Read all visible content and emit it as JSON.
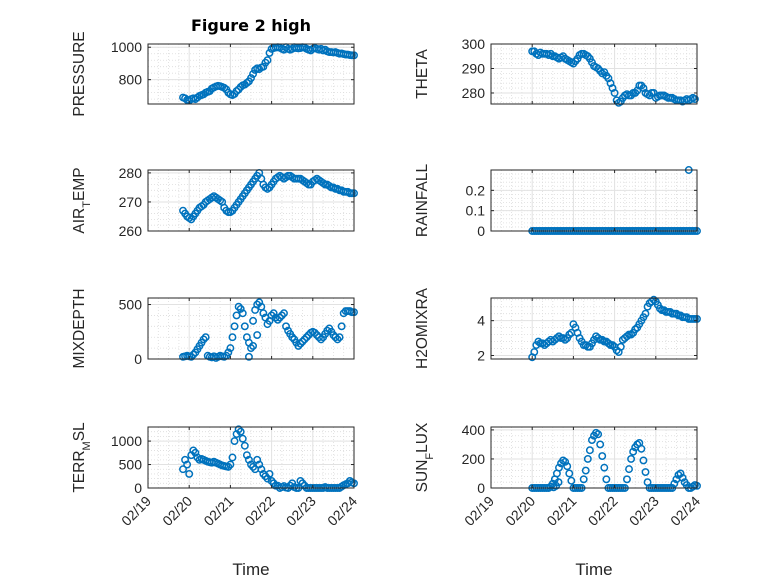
{
  "figure": {
    "title": "Figure 2 high",
    "xlabel": "Time",
    "xtick_labels": [
      "02/19",
      "02/20",
      "02/21",
      "02/22",
      "02/23",
      "02/24"
    ],
    "marker_color": "#0072BD"
  },
  "chart_data": [
    {
      "type": "scatter",
      "ylabel": "PRESSURE",
      "ylim": [
        650,
        1020
      ],
      "yticks": [
        800,
        1000
      ],
      "ytick_labels": [
        "800",
        "1000"
      ],
      "x": [
        0.85,
        0.9,
        0.95,
        1.0,
        1.05,
        1.1,
        1.15,
        1.2,
        1.25,
        1.3,
        1.35,
        1.4,
        1.45,
        1.5,
        1.55,
        1.6,
        1.65,
        1.7,
        1.75,
        1.8,
        1.85,
        1.9,
        1.95,
        2.0,
        2.05,
        2.1,
        2.15,
        2.2,
        2.25,
        2.3,
        2.35,
        2.4,
        2.45,
        2.5,
        2.55,
        2.6,
        2.65,
        2.7,
        2.75,
        2.8,
        2.85,
        2.9,
        2.95,
        3.0,
        3.05,
        3.1,
        3.15,
        3.2,
        3.25,
        3.3,
        3.35,
        3.4,
        3.45,
        3.5,
        3.55,
        3.6,
        3.65,
        3.7,
        3.75,
        3.8,
        3.85,
        3.9,
        3.95,
        4.0,
        4.05,
        4.1,
        4.15,
        4.2,
        4.25,
        4.3,
        4.35,
        4.4,
        4.45,
        4.5,
        4.55,
        4.6,
        4.65,
        4.7,
        4.75,
        4.8,
        4.85,
        4.9,
        4.95,
        5.0
      ],
      "y": [
        690,
        685,
        675,
        672,
        680,
        685,
        680,
        690,
        700,
        705,
        710,
        720,
        725,
        730,
        745,
        752,
        758,
        762,
        760,
        755,
        750,
        740,
        720,
        710,
        705,
        712,
        730,
        740,
        755,
        765,
        770,
        780,
        790,
        810,
        835,
        860,
        870,
        865,
        875,
        880,
        905,
        920,
        965,
        990,
        995,
        998,
        1000,
        997,
        990,
        985,
        1000,
        990,
        985,
        990,
        1000,
        995,
        993,
        995,
        1000,
        998,
        990,
        985,
        980,
        990,
        995,
        990,
        985,
        990,
        980,
        985,
        975,
        970,
        970,
        968,
        970,
        965,
        960,
        962,
        958,
        955,
        955,
        952,
        950,
        950
      ]
    },
    {
      "type": "scatter",
      "ylabel": "THETA",
      "ylim": [
        275.5,
        300
      ],
      "yticks": [
        280,
        290,
        300
      ],
      "ytick_labels": [
        "280",
        "290",
        "300"
      ],
      "x": [
        1.0,
        1.05,
        1.1,
        1.15,
        1.2,
        1.25,
        1.3,
        1.35,
        1.4,
        1.45,
        1.5,
        1.55,
        1.6,
        1.65,
        1.7,
        1.75,
        1.8,
        1.85,
        1.9,
        1.95,
        2.0,
        2.05,
        2.1,
        2.15,
        2.2,
        2.25,
        2.3,
        2.35,
        2.4,
        2.45,
        2.5,
        2.55,
        2.6,
        2.65,
        2.7,
        2.75,
        2.8,
        2.85,
        2.9,
        2.95,
        3.0,
        3.05,
        3.1,
        3.15,
        3.2,
        3.25,
        3.3,
        3.35,
        3.4,
        3.45,
        3.5,
        3.55,
        3.6,
        3.65,
        3.7,
        3.75,
        3.8,
        3.85,
        3.9,
        3.95,
        4.0,
        4.05,
        4.1,
        4.15,
        4.2,
        4.25,
        4.3,
        4.35,
        4.4,
        4.45,
        4.5,
        4.55,
        4.6,
        4.65,
        4.7,
        4.75,
        4.8,
        4.85,
        4.9,
        4.95
      ],
      "y": [
        297,
        297,
        296,
        295.5,
        296.5,
        296,
        296,
        296,
        295.5,
        296,
        295,
        295,
        294.5,
        294,
        294.5,
        295,
        294,
        293.5,
        293,
        292.5,
        292,
        293,
        294,
        295.5,
        296,
        296,
        295.5,
        295,
        294,
        292.5,
        291,
        290.5,
        290,
        289,
        288,
        288.5,
        287,
        286,
        284,
        282,
        280,
        277,
        276,
        276.5,
        278,
        279,
        279.5,
        279,
        279,
        280,
        280,
        281,
        283,
        283,
        282,
        280,
        279.5,
        279,
        280,
        280,
        278,
        278.5,
        279,
        279,
        279,
        278.5,
        278,
        278,
        278,
        277.5,
        277,
        277,
        277,
        276.5,
        277,
        277.5,
        277,
        277.5,
        278,
        277.5
      ]
    },
    {
      "type": "scatter",
      "ylabel": "AIR_TEMP",
      "ylim": [
        260,
        281
      ],
      "yticks": [
        260,
        270,
        280
      ],
      "ytick_labels": [
        "260",
        "270",
        "280"
      ],
      "x": [
        0.85,
        0.9,
        0.95,
        1.0,
        1.05,
        1.1,
        1.15,
        1.2,
        1.25,
        1.3,
        1.35,
        1.4,
        1.45,
        1.5,
        1.55,
        1.6,
        1.65,
        1.7,
        1.75,
        1.8,
        1.85,
        1.9,
        1.95,
        2.0,
        2.05,
        2.1,
        2.15,
        2.2,
        2.25,
        2.3,
        2.35,
        2.4,
        2.45,
        2.5,
        2.55,
        2.6,
        2.65,
        2.7,
        2.75,
        2.8,
        2.85,
        2.9,
        2.95,
        3.0,
        3.05,
        3.1,
        3.15,
        3.2,
        3.25,
        3.3,
        3.35,
        3.4,
        3.45,
        3.5,
        3.55,
        3.6,
        3.65,
        3.7,
        3.75,
        3.8,
        3.85,
        3.9,
        3.95,
        4.0,
        4.05,
        4.1,
        4.15,
        4.2,
        4.25,
        4.3,
        4.35,
        4.4,
        4.45,
        4.5,
        4.55,
        4.6,
        4.65,
        4.7,
        4.75,
        4.8,
        4.85,
        4.9,
        4.95,
        5.0
      ],
      "y": [
        267,
        266,
        265,
        264.5,
        264,
        265,
        266,
        267,
        268,
        268.5,
        269,
        270,
        270.5,
        271,
        271.5,
        272,
        271.5,
        271,
        270.5,
        270,
        268,
        267,
        266.5,
        266.5,
        267,
        268,
        269,
        270,
        271,
        272,
        273,
        274,
        275,
        276,
        277,
        278,
        279,
        280,
        278,
        276,
        275,
        274.5,
        275,
        276,
        277,
        278,
        278.5,
        279,
        278.5,
        278,
        278.5,
        279,
        279,
        278.5,
        278,
        278,
        278,
        278,
        277.5,
        277,
        276.5,
        276,
        276,
        277,
        277.5,
        278,
        277.5,
        277,
        276.5,
        276,
        276,
        275.5,
        275,
        275,
        274.5,
        274.5,
        274,
        274,
        273.5,
        273.5,
        273.5,
        273,
        273,
        273
      ]
    },
    {
      "type": "scatter",
      "ylabel": "RAINFALL",
      "ylim": [
        0,
        0.3
      ],
      "yticks": [
        0,
        0.1,
        0.2
      ],
      "ytick_labels": [
        "0",
        "0.1",
        "0.2"
      ],
      "x": [
        1.0,
        1.05,
        1.1,
        1.15,
        1.2,
        1.25,
        1.3,
        1.35,
        1.4,
        1.45,
        1.5,
        1.55,
        1.6,
        1.65,
        1.7,
        1.75,
        1.8,
        1.85,
        1.9,
        1.95,
        2.0,
        2.05,
        2.1,
        2.15,
        2.2,
        2.25,
        2.3,
        2.35,
        2.4,
        2.45,
        2.5,
        2.55,
        2.6,
        2.65,
        2.7,
        2.75,
        2.8,
        2.85,
        2.9,
        2.95,
        3.0,
        3.05,
        3.1,
        3.15,
        3.2,
        3.25,
        3.3,
        3.35,
        3.4,
        3.45,
        3.5,
        3.55,
        3.6,
        3.65,
        3.7,
        3.75,
        3.8,
        3.85,
        3.9,
        3.95,
        4.0,
        4.05,
        4.1,
        4.15,
        4.2,
        4.25,
        4.3,
        4.35,
        4.4,
        4.45,
        4.5,
        4.55,
        4.6,
        4.65,
        4.7,
        4.75,
        4.8,
        4.85,
        4.9,
        4.95,
        5.0,
        4.8
      ],
      "y": [
        0,
        0,
        0,
        0,
        0,
        0,
        0,
        0,
        0,
        0,
        0,
        0,
        0,
        0,
        0,
        0,
        0,
        0,
        0,
        0,
        0,
        0,
        0,
        0,
        0,
        0,
        0,
        0,
        0,
        0,
        0,
        0,
        0,
        0,
        0,
        0,
        0,
        0,
        0,
        0,
        0,
        0,
        0,
        0,
        0,
        0,
        0,
        0,
        0,
        0,
        0,
        0,
        0,
        0,
        0,
        0,
        0,
        0,
        0,
        0,
        0,
        0,
        0,
        0,
        0,
        0,
        0,
        0,
        0,
        0,
        0,
        0,
        0,
        0,
        0,
        0,
        0,
        0,
        0,
        0,
        0,
        0.3
      ]
    },
    {
      "type": "scatter",
      "ylabel": "MIXDEPTH",
      "ylim": [
        0,
        560
      ],
      "yticks": [
        0,
        500
      ],
      "ytick_labels": [
        "0",
        "500"
      ],
      "x": [
        0.85,
        0.9,
        0.95,
        1.0,
        1.05,
        1.1,
        1.15,
        1.2,
        1.25,
        1.3,
        1.35,
        1.4,
        1.45,
        1.5,
        1.55,
        1.6,
        1.65,
        1.7,
        1.75,
        1.8,
        1.85,
        1.9,
        1.95,
        2.0,
        2.05,
        2.1,
        2.15,
        2.2,
        2.25,
        2.3,
        2.35,
        2.4,
        2.45,
        2.5,
        2.55,
        2.6,
        2.65,
        2.7,
        2.75,
        2.8,
        2.85,
        2.9,
        2.95,
        3.0,
        3.05,
        3.1,
        3.15,
        3.2,
        3.25,
        3.3,
        3.35,
        3.4,
        3.45,
        3.5,
        3.55,
        3.6,
        3.65,
        3.7,
        3.75,
        3.8,
        3.85,
        3.9,
        3.95,
        4.0,
        4.05,
        4.1,
        4.15,
        4.2,
        4.25,
        4.3,
        4.35,
        4.4,
        4.45,
        4.5,
        4.55,
        4.6,
        4.65,
        4.7,
        4.75,
        4.8,
        4.85,
        4.9,
        4.95,
        5.0,
        2.45,
        2.55,
        2.65
      ],
      "y": [
        20,
        25,
        30,
        25,
        20,
        40,
        60,
        90,
        120,
        150,
        180,
        200,
        30,
        20,
        15,
        25,
        10,
        20,
        30,
        25,
        20,
        30,
        60,
        100,
        200,
        300,
        400,
        480,
        460,
        420,
        300,
        200,
        150,
        100,
        350,
        450,
        500,
        520,
        480,
        420,
        380,
        320,
        350,
        400,
        420,
        380,
        360,
        380,
        400,
        420,
        300,
        260,
        230,
        200,
        180,
        150,
        120,
        140,
        160,
        180,
        200,
        220,
        240,
        250,
        240,
        220,
        200,
        180,
        200,
        230,
        260,
        280,
        250,
        220,
        200,
        180,
        200,
        300,
        420,
        440,
        440,
        440,
        430,
        430,
        20,
        120,
        220
      ]
    },
    {
      "type": "scatter",
      "ylabel": "H2OMIXRA",
      "ylim": [
        1.8,
        5.3
      ],
      "yticks": [
        2,
        4
      ],
      "ytick_labels": [
        "2",
        "4"
      ],
      "x": [
        1.0,
        1.05,
        1.1,
        1.15,
        1.2,
        1.25,
        1.3,
        1.35,
        1.4,
        1.45,
        1.5,
        1.55,
        1.6,
        1.65,
        1.7,
        1.75,
        1.8,
        1.85,
        1.9,
        1.95,
        2.0,
        2.05,
        2.1,
        2.15,
        2.2,
        2.25,
        2.3,
        2.35,
        2.4,
        2.45,
        2.5,
        2.55,
        2.6,
        2.65,
        2.7,
        2.75,
        2.8,
        2.85,
        2.9,
        2.95,
        3.0,
        3.05,
        3.1,
        3.15,
        3.2,
        3.25,
        3.3,
        3.35,
        3.4,
        3.45,
        3.5,
        3.55,
        3.6,
        3.65,
        3.7,
        3.75,
        3.8,
        3.85,
        3.9,
        3.95,
        4.0,
        4.05,
        4.1,
        4.15,
        4.2,
        4.25,
        4.3,
        4.35,
        4.4,
        4.45,
        4.5,
        4.55,
        4.6,
        4.65,
        4.7,
        4.75,
        4.8,
        4.85,
        4.9,
        4.95,
        5.0
      ],
      "y": [
        1.9,
        2.2,
        2.6,
        2.8,
        2.7,
        2.7,
        2.6,
        2.7,
        2.8,
        2.9,
        2.8,
        2.9,
        3.0,
        3.1,
        3.0,
        3.0,
        2.9,
        3.0,
        3.2,
        3.3,
        3.8,
        3.6,
        3.3,
        3.0,
        2.8,
        2.6,
        2.6,
        2.5,
        2.5,
        2.7,
        2.9,
        3.1,
        3.0,
        2.9,
        2.9,
        2.8,
        2.8,
        2.7,
        2.6,
        2.6,
        2.5,
        2.3,
        2.2,
        2.5,
        2.9,
        3.0,
        3.1,
        3.2,
        3.2,
        3.3,
        3.5,
        3.6,
        3.8,
        4.0,
        4.2,
        4.4,
        4.8,
        5.0,
        5.1,
        5.2,
        5.1,
        4.9,
        4.7,
        4.6,
        4.6,
        4.5,
        4.5,
        4.5,
        4.4,
        4.4,
        4.4,
        4.3,
        4.3,
        4.2,
        4.2,
        4.2,
        4.1,
        4.1,
        4.1,
        4.1,
        4.1
      ]
    },
    {
      "type": "scatter",
      "ylabel": "TERR_MSL",
      "ylim": [
        0,
        1300
      ],
      "yticks": [
        0,
        500,
        1000
      ],
      "ytick_labels": [
        "0",
        "500",
        "1000"
      ],
      "x": [
        0.85,
        0.9,
        0.95,
        1.0,
        1.05,
        1.1,
        1.15,
        1.2,
        1.25,
        1.3,
        1.35,
        1.4,
        1.45,
        1.5,
        1.55,
        1.6,
        1.65,
        1.7,
        1.75,
        1.8,
        1.85,
        1.9,
        1.95,
        2.0,
        2.05,
        2.1,
        2.15,
        2.2,
        2.25,
        2.3,
        2.35,
        2.4,
        2.45,
        2.5,
        2.55,
        2.6,
        2.65,
        2.7,
        2.75,
        2.8,
        2.85,
        2.9,
        2.95,
        3.0,
        3.05,
        3.1,
        3.15,
        3.2,
        3.25,
        3.3,
        3.35,
        3.4,
        3.45,
        3.5,
        3.55,
        3.6,
        3.65,
        3.7,
        3.75,
        3.8,
        3.85,
        3.9,
        3.95,
        4.0,
        4.05,
        4.1,
        4.15,
        4.2,
        4.25,
        4.3,
        4.35,
        4.4,
        4.45,
        4.5,
        4.55,
        4.6,
        4.65,
        4.7,
        4.75,
        4.8,
        4.85,
        4.9,
        4.95,
        5.0
      ],
      "y": [
        400,
        600,
        500,
        300,
        700,
        800,
        750,
        650,
        600,
        620,
        600,
        580,
        560,
        550,
        540,
        560,
        540,
        520,
        500,
        480,
        470,
        460,
        450,
        500,
        650,
        1000,
        1150,
        1250,
        1200,
        1050,
        900,
        700,
        600,
        500,
        450,
        400,
        600,
        500,
        400,
        300,
        250,
        200,
        300,
        150,
        100,
        50,
        50,
        0,
        20,
        40,
        10,
        0,
        50,
        100,
        20,
        0,
        0,
        150,
        100,
        50,
        0,
        0,
        0,
        0,
        0,
        0,
        0,
        0,
        0,
        20,
        0,
        0,
        0,
        0,
        0,
        0,
        0,
        30,
        60,
        80,
        100,
        150,
        120,
        100
      ]
    },
    {
      "type": "scatter",
      "ylabel": "SUN_FLUX",
      "ylim": [
        0,
        420
      ],
      "yticks": [
        0,
        200,
        400
      ],
      "ytick_labels": [
        "0",
        "200",
        "400"
      ],
      "x": [
        1.0,
        1.05,
        1.1,
        1.15,
        1.2,
        1.25,
        1.3,
        1.35,
        1.4,
        1.45,
        1.5,
        1.55,
        1.6,
        1.65,
        1.7,
        1.75,
        1.8,
        1.85,
        1.9,
        1.95,
        2.0,
        2.05,
        2.1,
        2.15,
        2.2,
        2.25,
        2.3,
        2.35,
        2.4,
        2.45,
        2.5,
        2.55,
        2.6,
        2.65,
        2.7,
        2.75,
        2.8,
        2.85,
        2.9,
        2.95,
        3.0,
        3.05,
        3.1,
        3.15,
        3.2,
        3.25,
        3.3,
        3.35,
        3.4,
        3.45,
        3.5,
        3.55,
        3.6,
        3.65,
        3.7,
        3.75,
        3.8,
        3.85,
        3.9,
        3.95,
        4.0,
        4.05,
        4.1,
        4.15,
        4.2,
        4.25,
        4.3,
        4.35,
        4.4,
        4.45,
        4.5,
        4.55,
        4.6,
        4.65,
        4.7,
        4.75,
        4.8,
        4.85,
        4.9,
        4.95,
        5.0,
        1.52,
        1.58,
        1.64
      ],
      "y": [
        0,
        0,
        0,
        0,
        0,
        0,
        0,
        0,
        0,
        10,
        30,
        60,
        100,
        140,
        170,
        190,
        180,
        150,
        100,
        50,
        0,
        0,
        0,
        0,
        0,
        60,
        120,
        200,
        260,
        330,
        360,
        380,
        370,
        300,
        220,
        140,
        60,
        0,
        0,
        0,
        0,
        0,
        0,
        0,
        0,
        0,
        60,
        130,
        200,
        250,
        280,
        300,
        310,
        270,
        190,
        110,
        40,
        0,
        0,
        0,
        0,
        0,
        0,
        0,
        0,
        0,
        0,
        0,
        0,
        30,
        60,
        90,
        100,
        70,
        40,
        20,
        0,
        0,
        10,
        20,
        15,
        5,
        15,
        40
      ]
    }
  ]
}
